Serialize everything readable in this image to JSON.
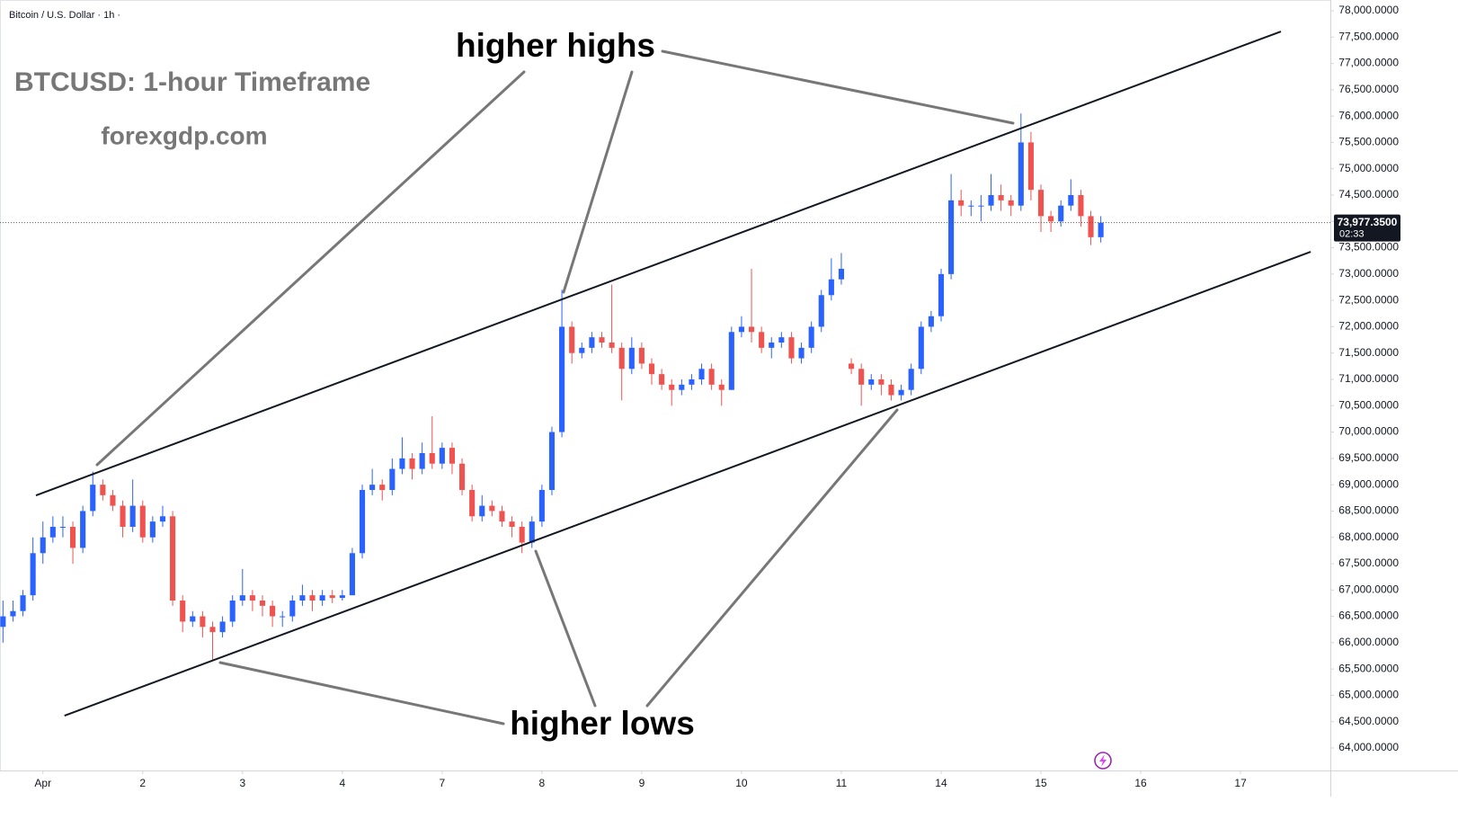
{
  "chart_data": {
    "type": "candlestick",
    "symbol": "Bitcoin / U.S. Dollar · 1h ·",
    "title": "BTCUSD: 1-hour Timeframe",
    "subtitle": "forexgdp.com",
    "annotations": [
      "higher highs",
      "higher lows"
    ],
    "up_color": "#2962ff",
    "down_color": "#ef5350",
    "grid": false,
    "xlim": [
      -0.43,
      12.9
    ],
    "ylim": [
      63573,
      78205
    ],
    "xticks": [
      {
        "value": 0,
        "label": "Apr"
      },
      {
        "value": 1,
        "label": "2"
      },
      {
        "value": 2,
        "label": "3"
      },
      {
        "value": 3,
        "label": "4"
      },
      {
        "value": 4,
        "label": "7"
      },
      {
        "value": 5,
        "label": "8"
      },
      {
        "value": 6,
        "label": "9"
      },
      {
        "value": 7,
        "label": "10"
      },
      {
        "value": 8,
        "label": "11"
      },
      {
        "value": 9,
        "label": "14"
      },
      {
        "value": 10,
        "label": "15"
      },
      {
        "value": 11,
        "label": "16"
      },
      {
        "value": 12,
        "label": "17"
      }
    ],
    "yticks": [
      {
        "value": 64000,
        "label": "64,000.0000"
      },
      {
        "value": 64500,
        "label": "64,500.0000"
      },
      {
        "value": 65000,
        "label": "65,000.0000"
      },
      {
        "value": 65500,
        "label": "65,500.0000"
      },
      {
        "value": 66000,
        "label": "66,000.0000"
      },
      {
        "value": 66500,
        "label": "66,500.0000"
      },
      {
        "value": 67000,
        "label": "67,000.0000"
      },
      {
        "value": 67500,
        "label": "67,500.0000"
      },
      {
        "value": 68000,
        "label": "68,000.0000"
      },
      {
        "value": 68500,
        "label": "68,500.0000"
      },
      {
        "value": 69000,
        "label": "69,000.0000"
      },
      {
        "value": 69500,
        "label": "69,500.0000"
      },
      {
        "value": 70000,
        "label": "70,000.0000"
      },
      {
        "value": 70500,
        "label": "70,500.0000"
      },
      {
        "value": 71000,
        "label": "71,000.0000"
      },
      {
        "value": 71500,
        "label": "71,500.0000"
      },
      {
        "value": 72000,
        "label": "72,000.0000"
      },
      {
        "value": 72500,
        "label": "72,500.0000"
      },
      {
        "value": 73000,
        "label": "73,000.0000"
      },
      {
        "value": 73500,
        "label": "73,500.0000"
      },
      {
        "value": 74000,
        "label": "74,000.0000"
      },
      {
        "value": 74500,
        "label": "74,500.0000"
      },
      {
        "value": 75000,
        "label": "75,000.0000"
      },
      {
        "value": 75500,
        "label": "75,500.0000"
      },
      {
        "value": 76000,
        "label": "76,000.0000"
      },
      {
        "value": 76500,
        "label": "76,500.0000"
      },
      {
        "value": 77000,
        "label": "77,000.0000"
      },
      {
        "value": 77500,
        "label": "77,500.0000"
      },
      {
        "value": 78000,
        "label": "78,000.0000"
      }
    ],
    "last_price": {
      "value": 73977.35,
      "label": "73,977.3500"
    },
    "countdown": "02:33",
    "trend_lines": [
      {
        "x": [
          -0.07,
          12.405
        ],
        "y": [
          68797,
          77607
        ]
      },
      {
        "x": [
          0.216,
          12.703
        ],
        "y": [
          64614,
          73424
        ]
      }
    ],
    "candles": {
      "x": [
        -0.4,
        -0.3,
        -0.2,
        -0.1,
        0,
        0.1,
        0.2,
        0.3,
        0.4,
        0.5,
        0.6,
        0.7,
        0.8,
        0.9,
        1,
        1.1,
        1.2,
        1.3,
        1.4,
        1.5,
        1.6,
        1.7,
        1.8,
        1.9,
        2,
        2.1,
        2.2,
        2.3,
        2.4,
        2.5,
        2.6,
        2.7,
        2.8,
        2.9,
        3,
        3.1,
        3.2,
        3.3,
        3.4,
        3.5,
        3.6,
        3.7,
        3.8,
        3.9,
        4,
        4.1,
        4.2,
        4.3,
        4.4,
        4.5,
        4.6,
        4.7,
        4.8,
        4.9,
        5,
        5.1,
        5.2,
        5.3,
        5.4,
        5.5,
        5.6,
        5.7,
        5.8,
        5.9,
        6,
        6.1,
        6.2,
        6.3,
        6.4,
        6.5,
        6.6,
        6.7,
        6.8,
        6.9,
        7,
        7.1,
        7.2,
        7.3,
        7.4,
        7.5,
        7.6,
        7.7,
        7.8,
        7.9,
        8,
        8.1,
        8.2,
        8.3,
        8.4,
        8.5,
        8.6,
        8.7,
        8.8,
        8.9,
        9,
        9.1,
        9.2,
        9.3,
        9.4,
        9.5,
        9.6,
        9.7,
        9.8,
        9.9,
        10,
        10.1,
        10.2,
        10.3,
        10.4,
        10.5,
        10.6
      ],
      "open": [
        66300,
        66500,
        66600,
        66900,
        67700,
        68000,
        68200,
        68200,
        67800,
        68500,
        69000,
        68800,
        68600,
        68200,
        68600,
        68000,
        68300,
        68400,
        66800,
        66400,
        66500,
        66300,
        66200,
        66400,
        66800,
        66900,
        66800,
        66700,
        66500,
        66500,
        66800,
        66900,
        66800,
        66900,
        66850,
        66900,
        67700,
        68900,
        69000,
        68900,
        69300,
        69500,
        69300,
        69600,
        69400,
        69700,
        69400,
        68900,
        68400,
        68600,
        68500,
        68300,
        68200,
        67900,
        68300,
        68900,
        70000,
        72000,
        71500,
        71600,
        71800,
        71700,
        71600,
        71200,
        71600,
        71300,
        71100,
        70900,
        70800,
        70900,
        71000,
        71200,
        70900,
        70800,
        71900,
        72000,
        71900,
        71600,
        71700,
        71800,
        71400,
        71600,
        72000,
        72600,
        72900,
        71300,
        71200,
        70900,
        71000,
        70900,
        70700,
        70800,
        71200,
        72000,
        72200,
        73000,
        74400,
        74300,
        74300,
        74300,
        74500,
        74400,
        74300,
        75500,
        74600,
        74100,
        74000,
        74300,
        74500,
        74100,
        73700
      ],
      "high": [
        66800,
        66800,
        67000,
        68000,
        68300,
        68400,
        68400,
        68300,
        68600,
        69250,
        69100,
        68900,
        68700,
        69100,
        68700,
        68400,
        68600,
        68500,
        66900,
        66600,
        66600,
        66400,
        66500,
        66900,
        67400,
        67000,
        66900,
        66800,
        66600,
        66900,
        67100,
        67000,
        67000,
        67000,
        67000,
        67800,
        69000,
        69300,
        69100,
        69500,
        69900,
        69600,
        69800,
        70300,
        69800,
        69800,
        69500,
        69000,
        68800,
        68700,
        68600,
        68400,
        68300,
        68400,
        69000,
        70100,
        72700,
        72100,
        71700,
        71900,
        71900,
        72800,
        71700,
        71800,
        71700,
        71400,
        71200,
        71000,
        71000,
        71100,
        71300,
        71300,
        71000,
        72000,
        72200,
        73100,
        72000,
        71800,
        71900,
        71900,
        71700,
        72100,
        72700,
        73300,
        73400,
        71400,
        71300,
        71100,
        71100,
        71000,
        70900,
        71300,
        72100,
        72300,
        73100,
        74900,
        74600,
        74400,
        74500,
        74900,
        74700,
        74500,
        76050,
        75700,
        74700,
        74200,
        74400,
        74800,
        74600,
        74200,
        74100
      ],
      "low": [
        66000,
        66400,
        66500,
        66800,
        67500,
        67900,
        68000,
        67500,
        67700,
        68400,
        68700,
        68500,
        68000,
        68100,
        67900,
        67900,
        68200,
        66700,
        66200,
        66300,
        66100,
        65650,
        66100,
        66300,
        66700,
        66600,
        66500,
        66300,
        66300,
        66400,
        66700,
        66600,
        66700,
        66750,
        66800,
        67300,
        67600,
        68800,
        68700,
        68800,
        69200,
        69100,
        69200,
        69300,
        69300,
        69200,
        68800,
        68300,
        68300,
        68400,
        68200,
        68000,
        67700,
        67800,
        68200,
        68800,
        69900,
        71300,
        71400,
        71500,
        71600,
        71500,
        70600,
        71100,
        71200,
        70900,
        70800,
        70500,
        70700,
        70800,
        70900,
        70800,
        70500,
        70800,
        71800,
        71700,
        71500,
        71400,
        71600,
        71300,
        71300,
        71500,
        71900,
        72500,
        72800,
        71100,
        70500,
        70800,
        70700,
        70600,
        70600,
        70700,
        71100,
        71900,
        72100,
        72900,
        74100,
        74100,
        74000,
        74200,
        74200,
        74100,
        74200,
        74400,
        73800,
        73800,
        73900,
        74200,
        73900,
        73550,
        73600
      ],
      "close": [
        66500,
        66600,
        66900,
        67700,
        68000,
        68200,
        68200,
        67800,
        68500,
        69000,
        68800,
        68600,
        68200,
        68600,
        68000,
        68300,
        68400,
        66800,
        66400,
        66500,
        66300,
        66200,
        66400,
        66800,
        66900,
        66800,
        66700,
        66500,
        66500,
        66800,
        66900,
        66800,
        66900,
        66850,
        66900,
        67700,
        68900,
        69000,
        68900,
        69300,
        69500,
        69300,
        69600,
        69400,
        69700,
        69400,
        68900,
        68400,
        68600,
        68500,
        68300,
        68200,
        67900,
        68300,
        68900,
        70000,
        72000,
        71500,
        71600,
        71800,
        71700,
        71600,
        71200,
        71600,
        71300,
        71100,
        70900,
        70800,
        70900,
        71000,
        71200,
        70900,
        70800,
        71900,
        72000,
        71900,
        71600,
        71700,
        71800,
        71400,
        71600,
        72000,
        72600,
        72900,
        73100,
        71200,
        70900,
        71000,
        70900,
        70700,
        70800,
        71200,
        72000,
        72200,
        73000,
        74400,
        74300,
        74300,
        74300,
        74500,
        74400,
        74300,
        75500,
        74600,
        74100,
        74000,
        74300,
        74500,
        74100,
        73700,
        73977.35
      ]
    }
  }
}
